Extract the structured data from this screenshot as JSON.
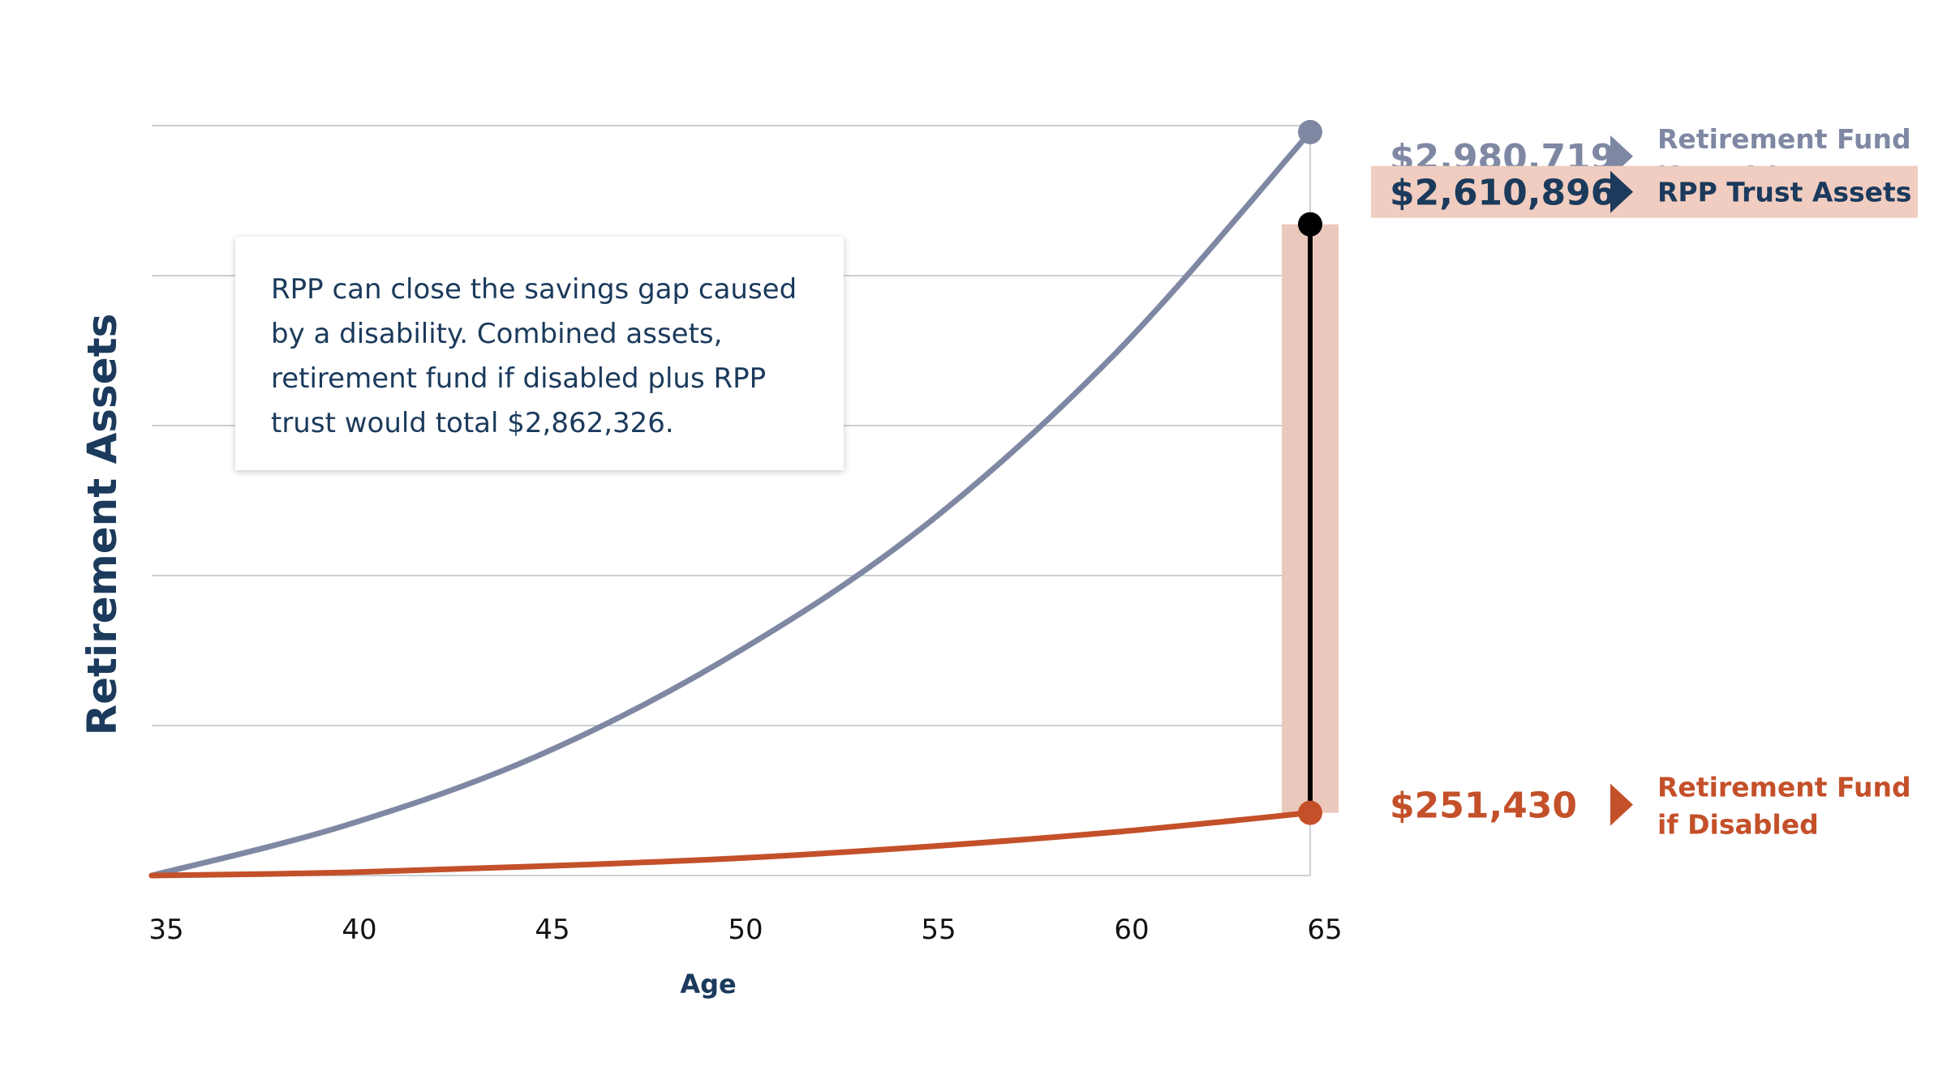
{
  "chart_data": {
    "type": "line",
    "xlabel": "Age",
    "ylabel": "Retirement Assets",
    "x_ticks": [
      35,
      40,
      45,
      50,
      55,
      60,
      65
    ],
    "xlim": [
      35,
      65
    ],
    "ylim": [
      0,
      3000000
    ],
    "grid": true,
    "series": [
      {
        "name": "Retirement Fund if Healthy",
        "color": "#7f88a3",
        "x": [
          35,
          40,
          45,
          50,
          55,
          60,
          65
        ],
        "y": [
          0,
          200000,
          480000,
          880000,
          1400000,
          2100000,
          2980719
        ]
      },
      {
        "name": "Retirement Fund if Disabled",
        "color": "#c4502a",
        "x": [
          35,
          40,
          45,
          50,
          55,
          60,
          65
        ],
        "y": [
          0,
          12000,
          37000,
          68000,
          115000,
          175000,
          251430
        ]
      }
    ],
    "markers": [
      {
        "x": 65,
        "y": 2980719,
        "color": "#7f88a3"
      },
      {
        "x": 65,
        "y": 2610896,
        "color": "#000000"
      },
      {
        "x": 65,
        "y": 251430,
        "color": "#c4502a"
      }
    ],
    "gap_bar": {
      "x": 65,
      "y_low": 251430,
      "y_high": 2610896,
      "fill": "#ebc8bc"
    },
    "labels": [
      {
        "value": "$2,980,719",
        "line1": "Retirement Fund",
        "line2": "if Healthy",
        "color": "#7f88a3",
        "highlight": false
      },
      {
        "value": "$2,610,896",
        "line1": "RPP Trust Assets",
        "line2": "",
        "color": "#1b3a5c",
        "highlight": true,
        "highlight_color": "#f0cdc0"
      },
      {
        "value": "$251,430",
        "line1": "Retirement Fund",
        "line2": "if Disabled",
        "color": "#c4502a",
        "highlight": false
      }
    ],
    "annotation": "RPP can close the savings gap caused by a disability. Combined assets, retirement fund if disabled plus RPP trust would total $2,862,326."
  }
}
